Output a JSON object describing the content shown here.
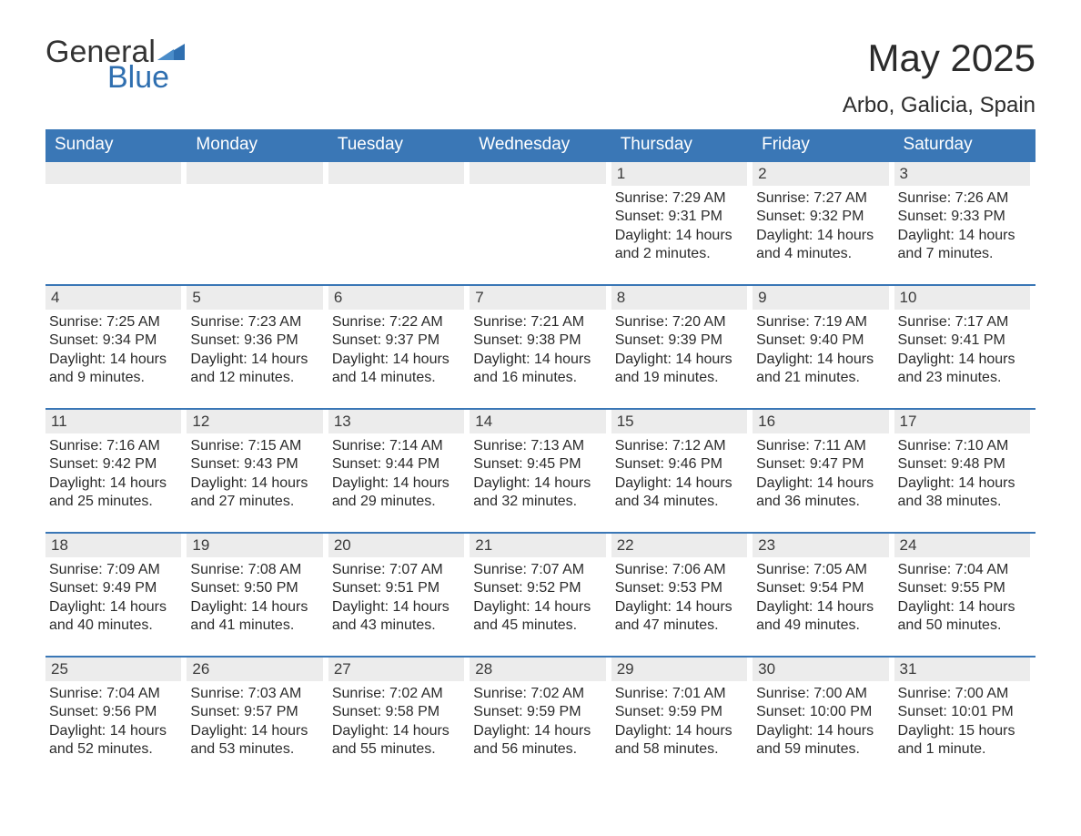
{
  "brand": {
    "word1": "General",
    "word2": "Blue",
    "word1_color": "#333333",
    "word2_color": "#2f6fb0",
    "triangle_color": "#2f6fb0"
  },
  "title": "May 2025",
  "location": "Arbo, Galicia, Spain",
  "colors": {
    "header_bg": "#3a77b6",
    "header_text": "#ffffff",
    "row_border": "#3a77b6",
    "daybar_bg": "#ececec",
    "body_text": "#2b2b2b",
    "page_bg": "#ffffff"
  },
  "day_headers": [
    "Sunday",
    "Monday",
    "Tuesday",
    "Wednesday",
    "Thursday",
    "Friday",
    "Saturday"
  ],
  "weeks": [
    [
      null,
      null,
      null,
      null,
      {
        "n": "1",
        "sunrise": "Sunrise: 7:29 AM",
        "sunset": "Sunset: 9:31 PM",
        "daylight": "Daylight: 14 hours and 2 minutes."
      },
      {
        "n": "2",
        "sunrise": "Sunrise: 7:27 AM",
        "sunset": "Sunset: 9:32 PM",
        "daylight": "Daylight: 14 hours and 4 minutes."
      },
      {
        "n": "3",
        "sunrise": "Sunrise: 7:26 AM",
        "sunset": "Sunset: 9:33 PM",
        "daylight": "Daylight: 14 hours and 7 minutes."
      }
    ],
    [
      {
        "n": "4",
        "sunrise": "Sunrise: 7:25 AM",
        "sunset": "Sunset: 9:34 PM",
        "daylight": "Daylight: 14 hours and 9 minutes."
      },
      {
        "n": "5",
        "sunrise": "Sunrise: 7:23 AM",
        "sunset": "Sunset: 9:36 PM",
        "daylight": "Daylight: 14 hours and 12 minutes."
      },
      {
        "n": "6",
        "sunrise": "Sunrise: 7:22 AM",
        "sunset": "Sunset: 9:37 PM",
        "daylight": "Daylight: 14 hours and 14 minutes."
      },
      {
        "n": "7",
        "sunrise": "Sunrise: 7:21 AM",
        "sunset": "Sunset: 9:38 PM",
        "daylight": "Daylight: 14 hours and 16 minutes."
      },
      {
        "n": "8",
        "sunrise": "Sunrise: 7:20 AM",
        "sunset": "Sunset: 9:39 PM",
        "daylight": "Daylight: 14 hours and 19 minutes."
      },
      {
        "n": "9",
        "sunrise": "Sunrise: 7:19 AM",
        "sunset": "Sunset: 9:40 PM",
        "daylight": "Daylight: 14 hours and 21 minutes."
      },
      {
        "n": "10",
        "sunrise": "Sunrise: 7:17 AM",
        "sunset": "Sunset: 9:41 PM",
        "daylight": "Daylight: 14 hours and 23 minutes."
      }
    ],
    [
      {
        "n": "11",
        "sunrise": "Sunrise: 7:16 AM",
        "sunset": "Sunset: 9:42 PM",
        "daylight": "Daylight: 14 hours and 25 minutes."
      },
      {
        "n": "12",
        "sunrise": "Sunrise: 7:15 AM",
        "sunset": "Sunset: 9:43 PM",
        "daylight": "Daylight: 14 hours and 27 minutes."
      },
      {
        "n": "13",
        "sunrise": "Sunrise: 7:14 AM",
        "sunset": "Sunset: 9:44 PM",
        "daylight": "Daylight: 14 hours and 29 minutes."
      },
      {
        "n": "14",
        "sunrise": "Sunrise: 7:13 AM",
        "sunset": "Sunset: 9:45 PM",
        "daylight": "Daylight: 14 hours and 32 minutes."
      },
      {
        "n": "15",
        "sunrise": "Sunrise: 7:12 AM",
        "sunset": "Sunset: 9:46 PM",
        "daylight": "Daylight: 14 hours and 34 minutes."
      },
      {
        "n": "16",
        "sunrise": "Sunrise: 7:11 AM",
        "sunset": "Sunset: 9:47 PM",
        "daylight": "Daylight: 14 hours and 36 minutes."
      },
      {
        "n": "17",
        "sunrise": "Sunrise: 7:10 AM",
        "sunset": "Sunset: 9:48 PM",
        "daylight": "Daylight: 14 hours and 38 minutes."
      }
    ],
    [
      {
        "n": "18",
        "sunrise": "Sunrise: 7:09 AM",
        "sunset": "Sunset: 9:49 PM",
        "daylight": "Daylight: 14 hours and 40 minutes."
      },
      {
        "n": "19",
        "sunrise": "Sunrise: 7:08 AM",
        "sunset": "Sunset: 9:50 PM",
        "daylight": "Daylight: 14 hours and 41 minutes."
      },
      {
        "n": "20",
        "sunrise": "Sunrise: 7:07 AM",
        "sunset": "Sunset: 9:51 PM",
        "daylight": "Daylight: 14 hours and 43 minutes."
      },
      {
        "n": "21",
        "sunrise": "Sunrise: 7:07 AM",
        "sunset": "Sunset: 9:52 PM",
        "daylight": "Daylight: 14 hours and 45 minutes."
      },
      {
        "n": "22",
        "sunrise": "Sunrise: 7:06 AM",
        "sunset": "Sunset: 9:53 PM",
        "daylight": "Daylight: 14 hours and 47 minutes."
      },
      {
        "n": "23",
        "sunrise": "Sunrise: 7:05 AM",
        "sunset": "Sunset: 9:54 PM",
        "daylight": "Daylight: 14 hours and 49 minutes."
      },
      {
        "n": "24",
        "sunrise": "Sunrise: 7:04 AM",
        "sunset": "Sunset: 9:55 PM",
        "daylight": "Daylight: 14 hours and 50 minutes."
      }
    ],
    [
      {
        "n": "25",
        "sunrise": "Sunrise: 7:04 AM",
        "sunset": "Sunset: 9:56 PM",
        "daylight": "Daylight: 14 hours and 52 minutes."
      },
      {
        "n": "26",
        "sunrise": "Sunrise: 7:03 AM",
        "sunset": "Sunset: 9:57 PM",
        "daylight": "Daylight: 14 hours and 53 minutes."
      },
      {
        "n": "27",
        "sunrise": "Sunrise: 7:02 AM",
        "sunset": "Sunset: 9:58 PM",
        "daylight": "Daylight: 14 hours and 55 minutes."
      },
      {
        "n": "28",
        "sunrise": "Sunrise: 7:02 AM",
        "sunset": "Sunset: 9:59 PM",
        "daylight": "Daylight: 14 hours and 56 minutes."
      },
      {
        "n": "29",
        "sunrise": "Sunrise: 7:01 AM",
        "sunset": "Sunset: 9:59 PM",
        "daylight": "Daylight: 14 hours and 58 minutes."
      },
      {
        "n": "30",
        "sunrise": "Sunrise: 7:00 AM",
        "sunset": "Sunset: 10:00 PM",
        "daylight": "Daylight: 14 hours and 59 minutes."
      },
      {
        "n": "31",
        "sunrise": "Sunrise: 7:00 AM",
        "sunset": "Sunset: 10:01 PM",
        "daylight": "Daylight: 15 hours and 1 minute."
      }
    ]
  ]
}
